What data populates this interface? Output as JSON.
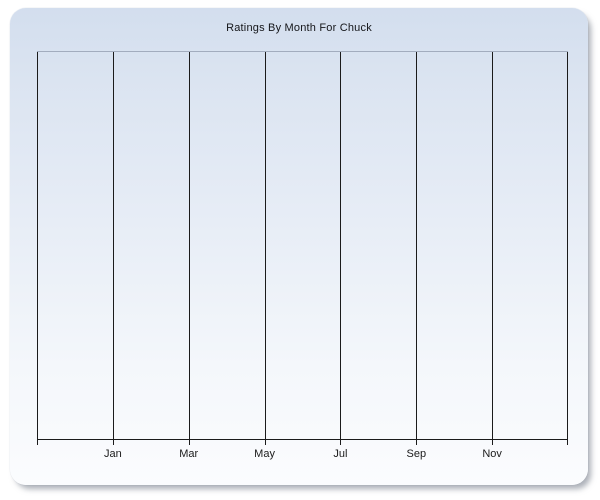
{
  "chart": {
    "title": "Ratings By Month For Chuck"
  },
  "chart_data": {
    "type": "line",
    "title": "Ratings By Month For Chuck",
    "xlabel": "",
    "ylabel": "",
    "x_tick_labels": [
      "Jan",
      "Mar",
      "May",
      "Jul",
      "Sep",
      "Nov"
    ],
    "x_axis_note": "month/date axis labeled every two months; unlabeled gridlines at both plot edges",
    "y_tick_labels": [],
    "series": [],
    "no_data_plotted": true,
    "grid": "vertical gridlines only (8 lines including plot edges), no horizontal gridlines, no y-axis tick labels",
    "legend": "none",
    "gridline_count": 8,
    "colors": {
      "card_gradient_top": "#d3deee",
      "card_gradient_bottom": "#fbfcfe",
      "gridline": "#1b1b1b",
      "axis": "#1b1b1b",
      "plot_top_border": "#a2acbe",
      "title_text": "#15161a",
      "page_background": "#ffffff",
      "shadow": "#68707e"
    }
  }
}
